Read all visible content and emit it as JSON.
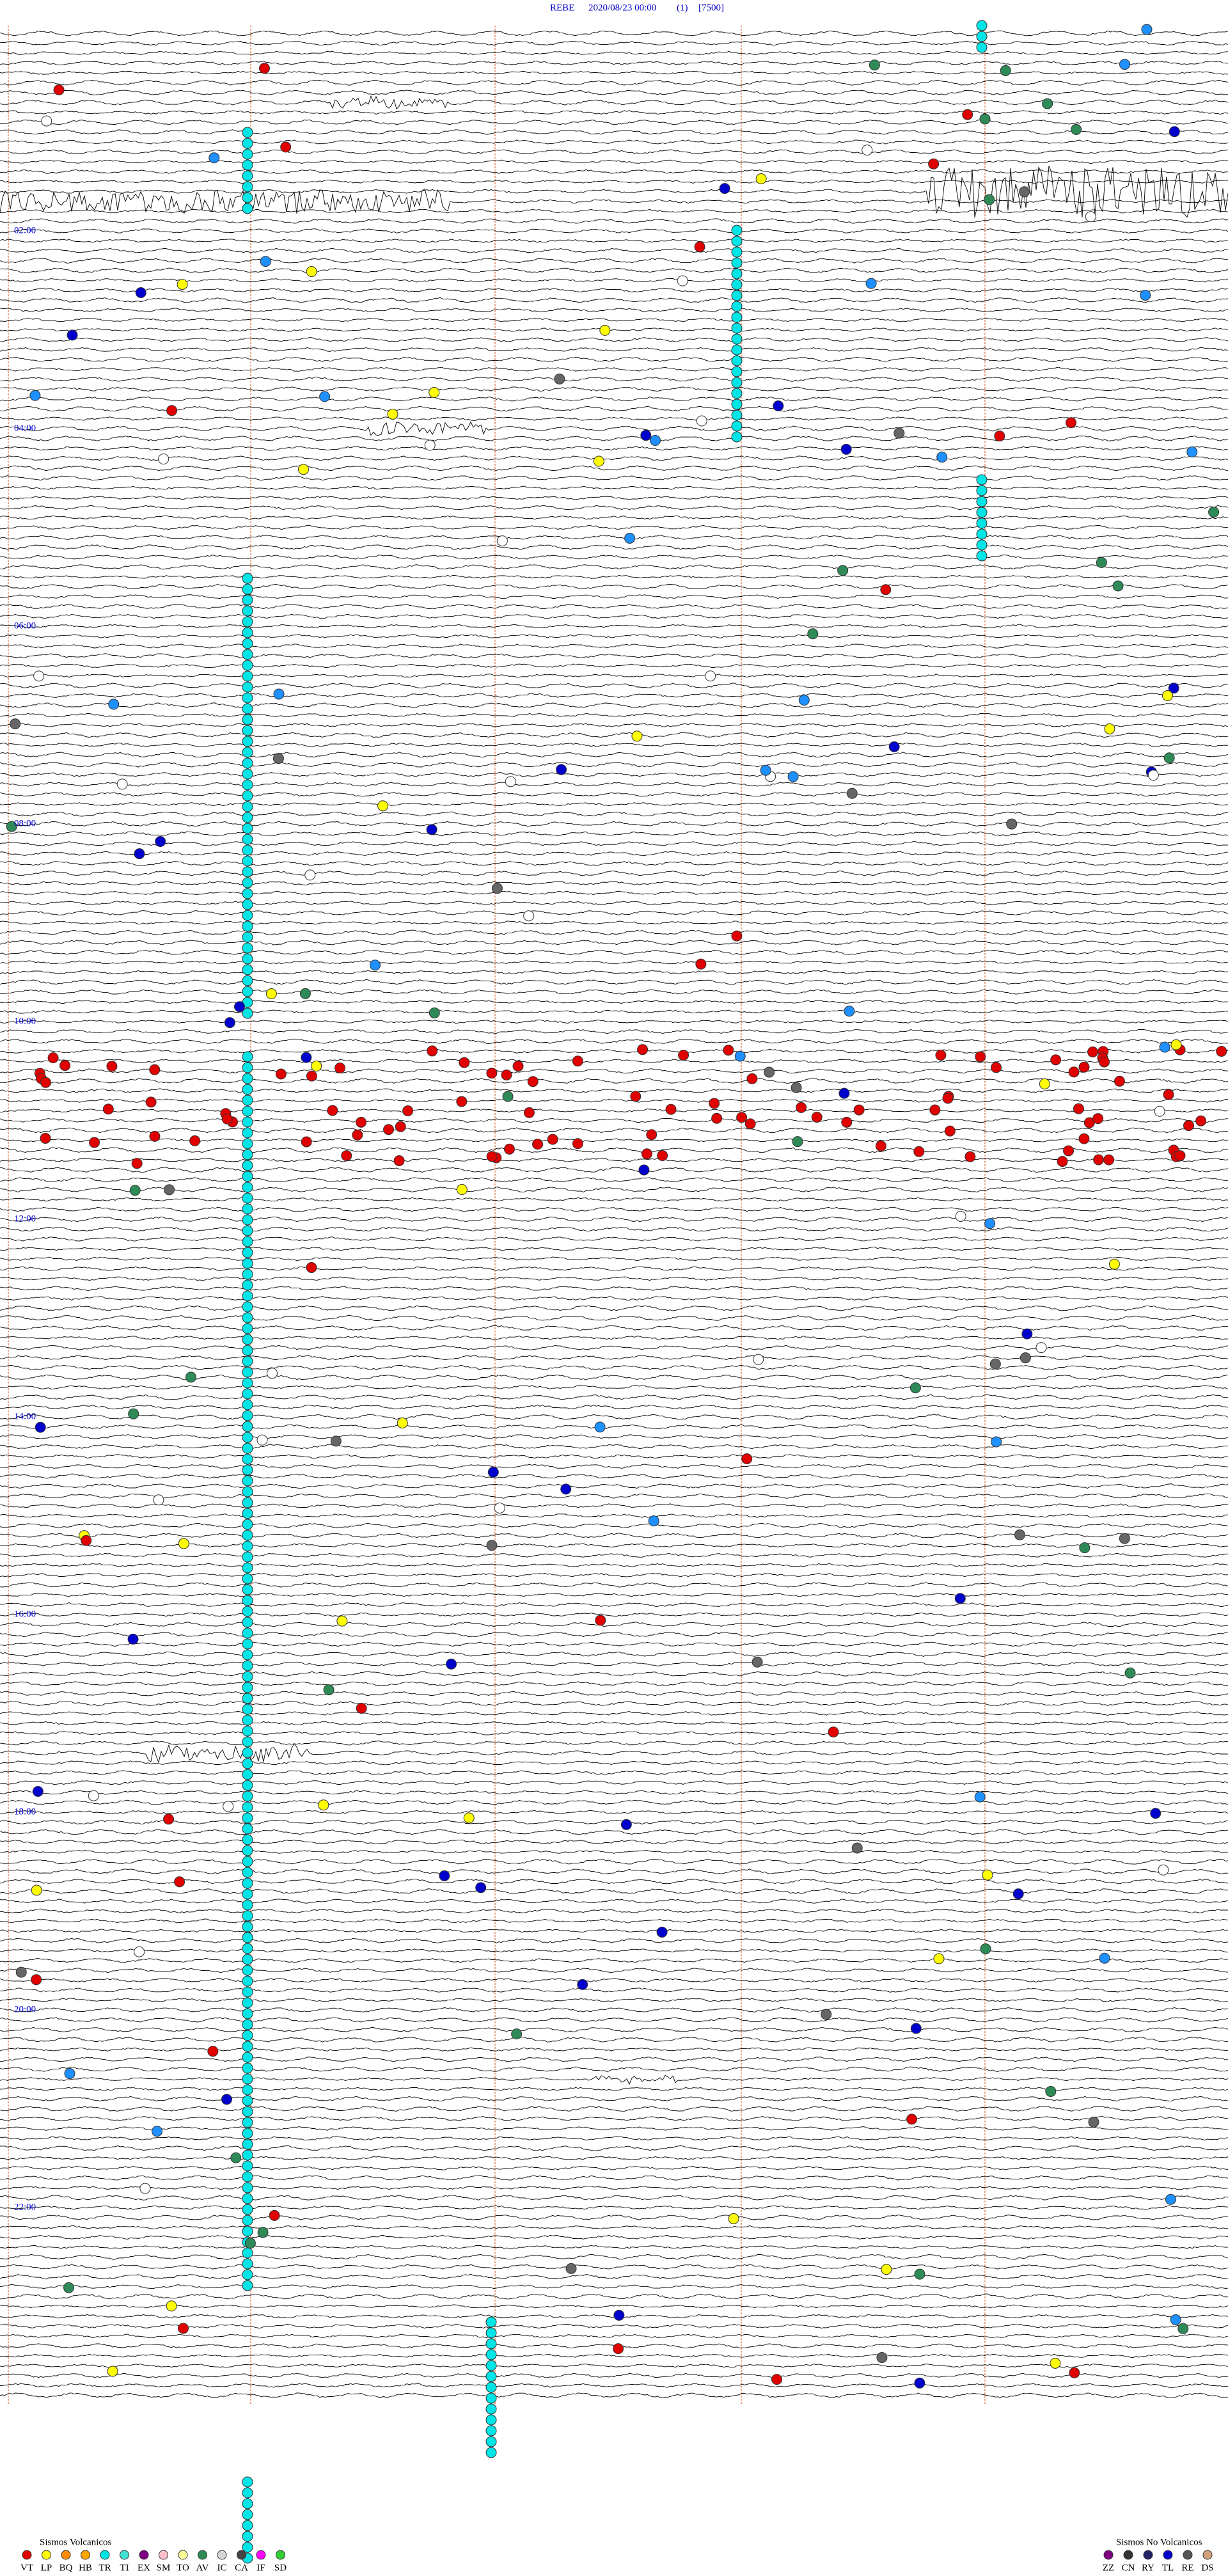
{
  "header": {
    "station": "REBE",
    "datetime": "2020/08/23 00:00",
    "channel": "(1)",
    "scale": "[7500]"
  },
  "time_labels": [
    "02:00",
    "04:00",
    "06:00",
    "08:00",
    "10:00",
    "12:00",
    "14:00",
    "16:00",
    "18:00",
    "20:00",
    "22:00"
  ],
  "legend": {
    "volcanic": {
      "title": "Sismos Volcanicos",
      "items": [
        {
          "code": "VT",
          "color": "#e00000"
        },
        {
          "code": "LP",
          "color": "#ffff00"
        },
        {
          "code": "BQ",
          "color": "#ff8c00"
        },
        {
          "code": "HB",
          "color": "#ffa500"
        },
        {
          "code": "TR",
          "color": "#00e5e5"
        },
        {
          "code": "TI",
          "color": "#40e0d0"
        },
        {
          "code": "EX",
          "color": "#800080"
        },
        {
          "code": "SM",
          "color": "#ffc0cb"
        },
        {
          "code": "TO",
          "color": "#ffff99"
        },
        {
          "code": "AV",
          "color": "#2e8b57"
        },
        {
          "code": "IC",
          "color": "#d3d3d3"
        },
        {
          "code": "CA",
          "color": "#444444"
        },
        {
          "code": "IF",
          "color": "#ff00ff"
        },
        {
          "code": "SD",
          "color": "#32cd32"
        }
      ]
    },
    "non_volcanic": {
      "title": "Sismos No Volcanicos",
      "items": [
        {
          "code": "ZZ",
          "color": "#800080"
        },
        {
          "code": "CN",
          "color": "#333333"
        },
        {
          "code": "RY",
          "color": "#222266"
        },
        {
          "code": "TL",
          "color": "#0000cc"
        },
        {
          "code": "RE",
          "color": "#555555"
        },
        {
          "code": "DS",
          "color": "#d2a07a"
        }
      ]
    }
  }
}
